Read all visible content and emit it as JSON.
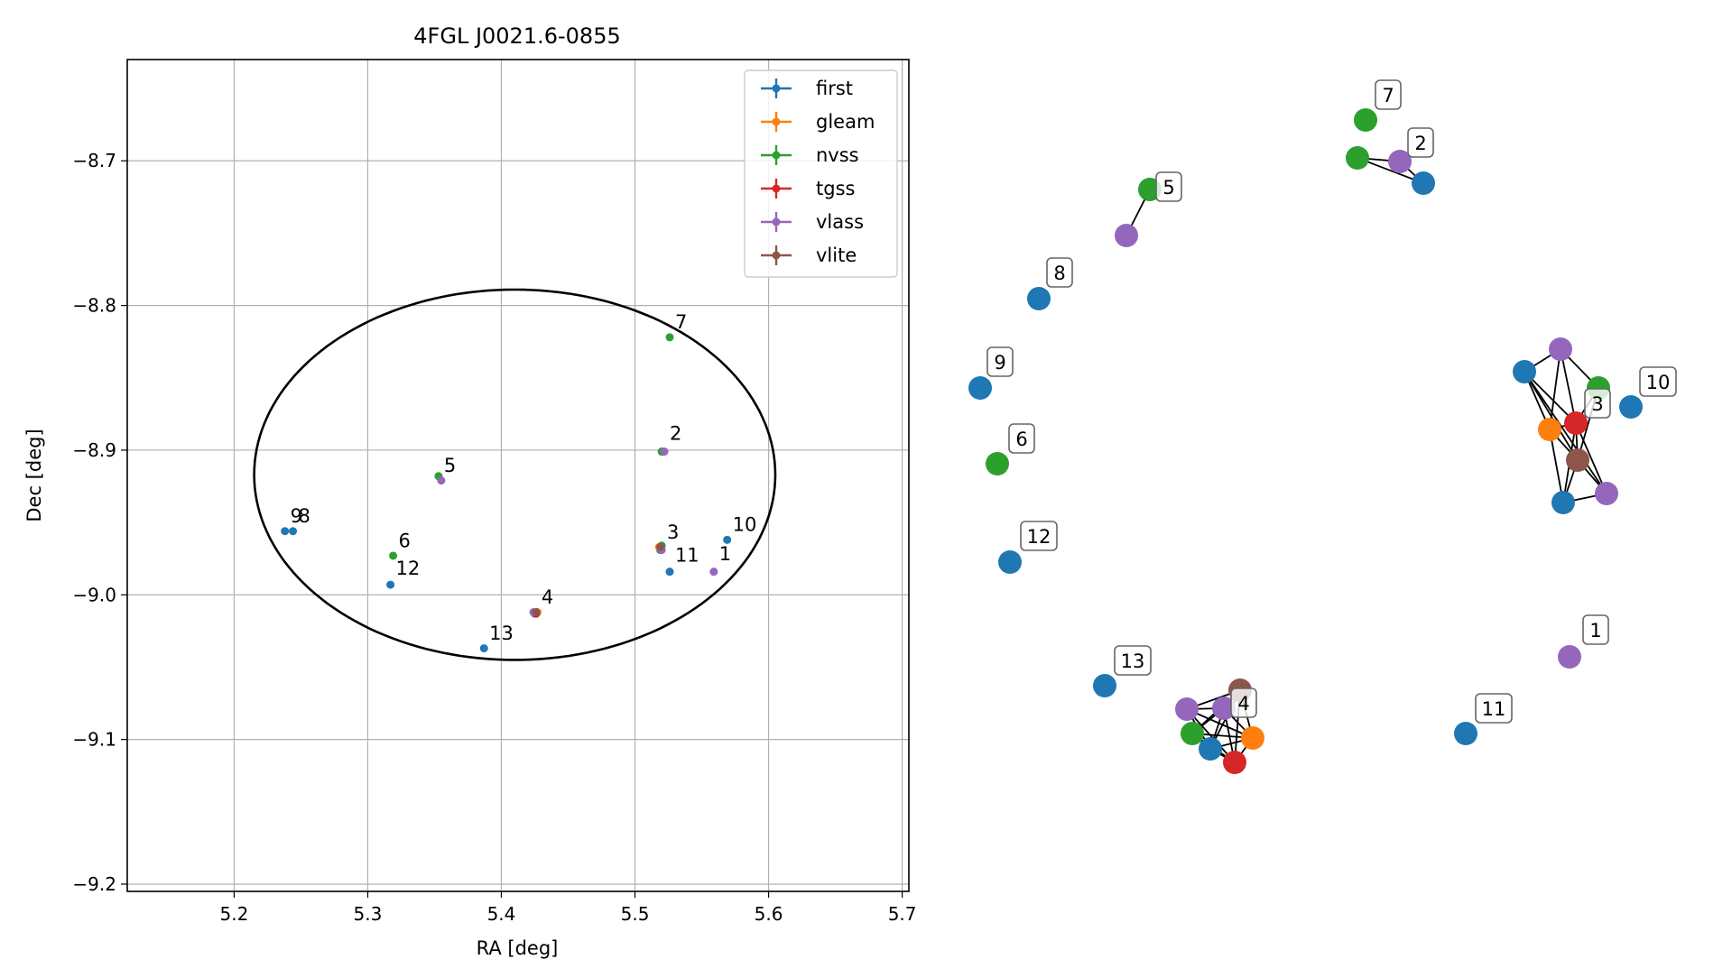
{
  "colors": {
    "first": "#1f77b4",
    "gleam": "#ff7f0e",
    "nvss": "#2ca02c",
    "tgss": "#d62728",
    "vlass": "#9467bd",
    "vlite": "#8c564b"
  },
  "chart_data": [
    {
      "type": "scatter",
      "title": "4FGL J0021.6-0855",
      "xlabel": "RA [deg]",
      "ylabel": "Dec [deg]",
      "xlim": [
        5.12,
        5.705
      ],
      "ylim": [
        -9.205,
        -8.63
      ],
      "xticks": [
        5.2,
        5.3,
        5.4,
        5.5,
        5.6,
        5.7
      ],
      "xtick_labels": [
        "5.2",
        "5.3",
        "5.4",
        "5.5",
        "5.6",
        "5.7"
      ],
      "yticks": [
        -8.7,
        -8.8,
        -8.9,
        -9.0,
        -9.1,
        -9.2
      ],
      "ytick_labels": [
        "−8.7",
        "−8.8",
        "−8.9",
        "−9.0",
        "−9.1",
        "−9.2"
      ],
      "grid": true,
      "legend_position": "upper-right",
      "legend": [
        "first",
        "gleam",
        "nvss",
        "tgss",
        "vlass",
        "vlite"
      ],
      "ellipse": {
        "center": [
          5.41,
          -8.917
        ],
        "semi_axis_ra": 0.195,
        "semi_axis_dec": 0.128
      },
      "points": [
        {
          "survey": "first",
          "x": 5.238,
          "y": -8.956
        },
        {
          "survey": "first",
          "x": 5.244,
          "y": -8.956
        },
        {
          "survey": "first",
          "x": 5.317,
          "y": -8.993
        },
        {
          "survey": "first",
          "x": 5.387,
          "y": -9.037
        },
        {
          "survey": "first",
          "x": 5.526,
          "y": -8.984
        },
        {
          "survey": "first",
          "x": 5.569,
          "y": -8.962
        },
        {
          "survey": "first",
          "x": 5.521,
          "y": -8.901
        },
        {
          "survey": "first",
          "x": 5.426,
          "y": -9.013
        },
        {
          "survey": "first",
          "x": 5.519,
          "y": -8.969
        },
        {
          "survey": "gleam",
          "x": 5.427,
          "y": -9.012
        },
        {
          "survey": "gleam",
          "x": 5.518,
          "y": -8.967
        },
        {
          "survey": "nvss",
          "x": 5.319,
          "y": -8.973
        },
        {
          "survey": "nvss",
          "x": 5.353,
          "y": -8.918
        },
        {
          "survey": "nvss",
          "x": 5.526,
          "y": -8.822
        },
        {
          "survey": "nvss",
          "x": 5.52,
          "y": -8.901
        },
        {
          "survey": "nvss",
          "x": 5.425,
          "y": -9.013
        },
        {
          "survey": "nvss",
          "x": 5.52,
          "y": -8.966
        },
        {
          "survey": "tgss",
          "x": 5.426,
          "y": -9.013
        },
        {
          "survey": "tgss",
          "x": 5.519,
          "y": -8.967
        },
        {
          "survey": "vlass",
          "x": 5.559,
          "y": -8.984
        },
        {
          "survey": "vlass",
          "x": 5.355,
          "y": -8.921
        },
        {
          "survey": "vlass",
          "x": 5.522,
          "y": -8.901
        },
        {
          "survey": "vlass",
          "x": 5.424,
          "y": -9.012
        },
        {
          "survey": "vlass",
          "x": 5.52,
          "y": -8.969
        },
        {
          "survey": "vlite",
          "x": 5.426,
          "y": -9.012
        },
        {
          "survey": "vlite",
          "x": 5.519,
          "y": -8.967
        }
      ],
      "annotations": [
        {
          "text": "1",
          "x": 5.563,
          "y": -8.976
        },
        {
          "text": "2",
          "x": 5.526,
          "y": -8.893
        },
        {
          "text": "3",
          "x": 5.524,
          "y": -8.961
        },
        {
          "text": "4",
          "x": 5.43,
          "y": -9.006
        },
        {
          "text": "5",
          "x": 5.357,
          "y": -8.915
        },
        {
          "text": "6",
          "x": 5.323,
          "y": -8.967
        },
        {
          "text": "7",
          "x": 5.53,
          "y": -8.816
        },
        {
          "text": "9",
          "x": 5.242,
          "y": -8.95
        },
        {
          "text": "8",
          "x": 5.248,
          "y": -8.95
        },
        {
          "text": "10",
          "x": 5.573,
          "y": -8.956
        },
        {
          "text": "11",
          "x": 5.53,
          "y": -8.977
        },
        {
          "text": "12",
          "x": 5.321,
          "y": -8.986
        },
        {
          "text": "13",
          "x": 5.391,
          "y": -9.031
        }
      ]
    },
    {
      "type": "network",
      "nodes": [
        {
          "id": "n1",
          "survey": "vlass",
          "label": "1"
        },
        {
          "id": "n2a",
          "survey": "nvss"
        },
        {
          "id": "n2b",
          "survey": "vlass",
          "label": "2"
        },
        {
          "id": "n2c",
          "survey": "first"
        },
        {
          "id": "n3a",
          "survey": "first"
        },
        {
          "id": "n3b",
          "survey": "vlass"
        },
        {
          "id": "n3c",
          "survey": "nvss"
        },
        {
          "id": "n3d",
          "survey": "gleam"
        },
        {
          "id": "n3e",
          "survey": "tgss",
          "label": "3"
        },
        {
          "id": "n3f",
          "survey": "vlite"
        },
        {
          "id": "n3g",
          "survey": "first"
        },
        {
          "id": "n3h",
          "survey": "vlass"
        },
        {
          "id": "n4a",
          "survey": "vlite"
        },
        {
          "id": "n4b",
          "survey": "vlass"
        },
        {
          "id": "n4c",
          "survey": "vlass",
          "label": "4"
        },
        {
          "id": "n4d",
          "survey": "nvss"
        },
        {
          "id": "n4e",
          "survey": "gleam"
        },
        {
          "id": "n4f",
          "survey": "first"
        },
        {
          "id": "n4g",
          "survey": "tgss"
        },
        {
          "id": "n5a",
          "survey": "nvss",
          "label": "5"
        },
        {
          "id": "n5b",
          "survey": "vlass"
        },
        {
          "id": "n6",
          "survey": "nvss",
          "label": "6"
        },
        {
          "id": "n7",
          "survey": "nvss",
          "label": "7"
        },
        {
          "id": "n8",
          "survey": "first",
          "label": "8"
        },
        {
          "id": "n9",
          "survey": "first",
          "label": "9"
        },
        {
          "id": "n10",
          "survey": "first",
          "label": "10"
        },
        {
          "id": "n11",
          "survey": "first",
          "label": "11"
        },
        {
          "id": "n12",
          "survey": "first",
          "label": "12"
        },
        {
          "id": "n13",
          "survey": "first",
          "label": "13"
        }
      ],
      "edges": [
        [
          "n2a",
          "n2b"
        ],
        [
          "n2a",
          "n2c"
        ],
        [
          "n2b",
          "n2c"
        ],
        [
          "n5a",
          "n5b"
        ],
        [
          "n3a",
          "n3b"
        ],
        [
          "n3a",
          "n3e"
        ],
        [
          "n3a",
          "n3f"
        ],
        [
          "n3a",
          "n3d"
        ],
        [
          "n3a",
          "n3h"
        ],
        [
          "n3b",
          "n3c"
        ],
        [
          "n3b",
          "n3e"
        ],
        [
          "n3b",
          "n3d"
        ],
        [
          "n3c",
          "n3e"
        ],
        [
          "n3c",
          "n3f"
        ],
        [
          "n3d",
          "n3e"
        ],
        [
          "n3d",
          "n3f"
        ],
        [
          "n3d",
          "n3g"
        ],
        [
          "n3e",
          "n3f"
        ],
        [
          "n3e",
          "n3g"
        ],
        [
          "n3e",
          "n3h"
        ],
        [
          "n3f",
          "n3g"
        ],
        [
          "n3f",
          "n3h"
        ],
        [
          "n3g",
          "n3h"
        ],
        [
          "n4a",
          "n4b"
        ],
        [
          "n4a",
          "n4c"
        ],
        [
          "n4a",
          "n4d"
        ],
        [
          "n4a",
          "n4e"
        ],
        [
          "n4a",
          "n4f"
        ],
        [
          "n4a",
          "n4g"
        ],
        [
          "n4b",
          "n4c"
        ],
        [
          "n4b",
          "n4f"
        ],
        [
          "n4b",
          "n4g"
        ],
        [
          "n4b",
          "n4e"
        ],
        [
          "n4c",
          "n4d"
        ],
        [
          "n4c",
          "n4e"
        ],
        [
          "n4c",
          "n4f"
        ],
        [
          "n4c",
          "n4g"
        ],
        [
          "n4d",
          "n4f"
        ],
        [
          "n4d",
          "n4g"
        ],
        [
          "n4d",
          "n4e"
        ],
        [
          "n4e",
          "n4f"
        ],
        [
          "n4e",
          "n4g"
        ],
        [
          "n4f",
          "n4g"
        ]
      ]
    }
  ]
}
